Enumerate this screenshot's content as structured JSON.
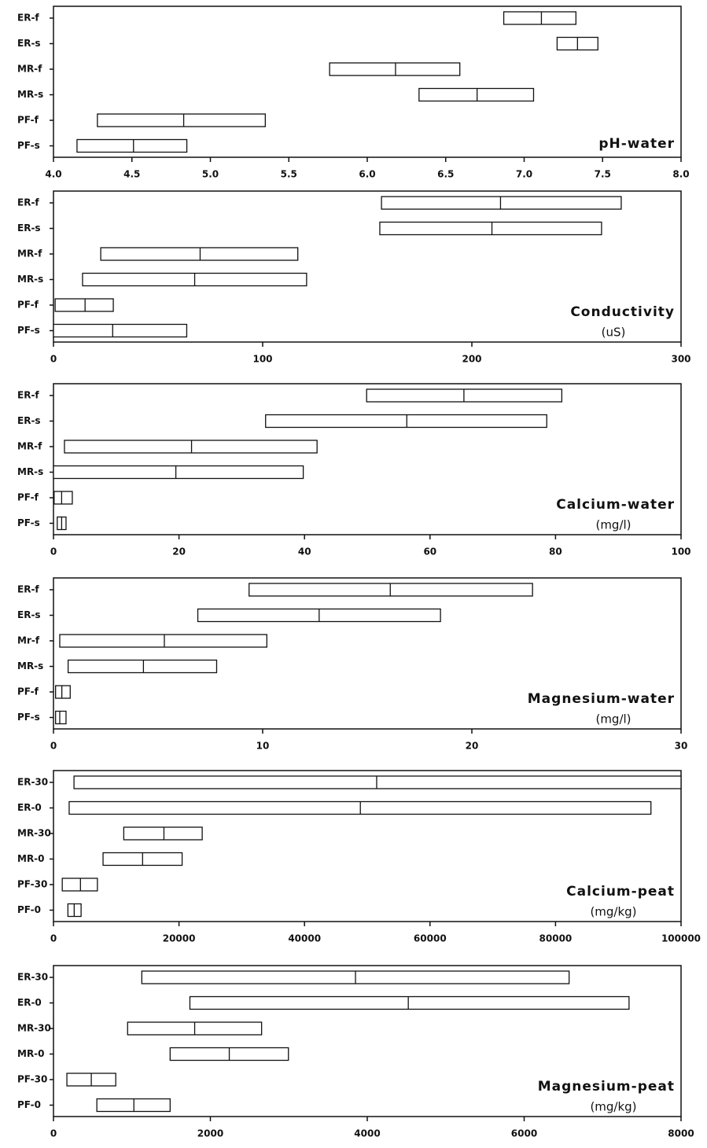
{
  "chart_data": [
    {
      "type": "range",
      "title": "pH-water",
      "categories": [
        "ER-f",
        "ER-s",
        "MR-f",
        "MR-s",
        "PF-f",
        "PF-s"
      ],
      "low": [
        6.87,
        7.21,
        5.76,
        6.33,
        4.28,
        4.15
      ],
      "median": [
        7.11,
        7.34,
        6.18,
        6.7,
        4.83,
        4.51
      ],
      "high": [
        7.33,
        7.47,
        6.59,
        7.06,
        5.35,
        4.85
      ],
      "xlim": [
        4,
        8
      ],
      "xticks": [
        {
          "value": 4,
          "label": "4.0"
        },
        4.5,
        {
          "value": 5,
          "label": "5.0"
        },
        5.5,
        {
          "value": 6,
          "label": "6.0"
        },
        6.5,
        {
          "value": 7,
          "label": "7.0"
        },
        7.5,
        {
          "value": 8,
          "label": "8.0"
        }
      ]
    },
    {
      "type": "range",
      "title": "Conductivity",
      "unit": "(uS)",
      "categories": [
        "ER-f",
        "ER-s",
        "MR-f",
        "MR-s",
        "PF-f",
        "PF-s"
      ],
      "low": [
        156.8,
        156,
        22.6,
        13.9,
        0.8,
        0
      ],
      "median": [
        213.7,
        209.6,
        70.1,
        67.5,
        15.1,
        28.3
      ],
      "high": [
        271.4,
        262,
        116.8,
        121,
        28.6,
        63.7
      ],
      "xlim": [
        0,
        300
      ],
      "xticks": [
        0,
        100,
        200,
        300
      ]
    },
    {
      "type": "range",
      "title": "Calcium-water",
      "unit": "(mg/l)",
      "categories": [
        "ER-f",
        "ER-s",
        "MR-f",
        "MR-s",
        "PF-f",
        "PF-s"
      ],
      "low": [
        49.9,
        33.8,
        1.75,
        0,
        0.1,
        0.6
      ],
      "median": [
        65.4,
        56.3,
        22,
        19.5,
        1.3,
        1.3
      ],
      "high": [
        81,
        78.6,
        42,
        39.8,
        3,
        2
      ],
      "xlim": [
        0,
        100
      ],
      "xticks": [
        0,
        20,
        40,
        60,
        80,
        100
      ]
    },
    {
      "type": "range",
      "title": "Magnesium-water",
      "unit": "(mg/l)",
      "categories": [
        "ER-f",
        "ER-s",
        "Mr-f",
        "MR-s",
        "PF-f",
        "PF-s"
      ],
      "low": [
        9.35,
        6.9,
        0.3,
        0.7,
        0.1,
        0.1
      ],
      "median": [
        16.1,
        12.7,
        5.3,
        4.3,
        0.4,
        0.3
      ],
      "high": [
        22.9,
        18.5,
        10.2,
        7.8,
        0.8,
        0.6
      ],
      "xlim": [
        0,
        30
      ],
      "xticks": [
        0,
        10,
        20,
        30
      ]
    },
    {
      "type": "range",
      "title": "Calcium-peat",
      "unit": "(mg/kg)",
      "categories": [
        "ER-30",
        "ER-0",
        "MR-30",
        "MR-0",
        "PF-30",
        "PF-0"
      ],
      "low": [
        3270,
        2500,
        11200,
        7900,
        1400,
        2300
      ],
      "median": [
        51500,
        48900,
        17600,
        14200,
        4300,
        3300
      ],
      "high": [
        100000,
        95200,
        23700,
        20500,
        7000,
        4400
      ],
      "xlim": [
        0,
        100000
      ],
      "xticks": [
        0,
        20000,
        40000,
        60000,
        80000,
        100000
      ]
    },
    {
      "type": "range",
      "title": "Magnesium-peat",
      "unit": "(mg/kg)",
      "categories": [
        "ER-30",
        "ER-0",
        "MR-30",
        "MR-0",
        "PF-30",
        "PF-0"
      ],
      "low": [
        1126,
        1739,
        945,
        1487,
        171,
        553
      ],
      "median": [
        3850,
        4523,
        1800,
        2241,
        482,
        1025
      ],
      "high": [
        6573,
        7337,
        2653,
        2995,
        794,
        1487
      ],
      "xlim": [
        0,
        8000
      ],
      "xticks": [
        0,
        2000,
        4000,
        6000,
        8000
      ]
    }
  ]
}
